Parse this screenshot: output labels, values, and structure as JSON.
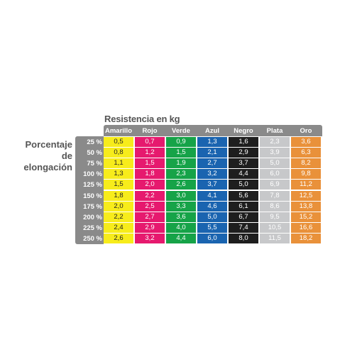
{
  "title": "Resistencia en kg",
  "row_label": "Porcentaje de elongación",
  "columns": [
    {
      "name": "Amarillo",
      "color": "#f7ec1b",
      "text": "#222"
    },
    {
      "name": "Rojo",
      "color": "#e6196e",
      "text": "#ffffff"
    },
    {
      "name": "Verde",
      "color": "#16a348",
      "text": "#ffffff"
    },
    {
      "name": "Azul",
      "color": "#1a64b0",
      "text": "#ffffff"
    },
    {
      "name": "Negro",
      "color": "#1e1e1e",
      "text": "#ffffff"
    },
    {
      "name": "Plata",
      "color": "#c7c8ca",
      "text": "#ffffff"
    },
    {
      "name": "Oro",
      "color": "#e9913a",
      "text": "#ffffff"
    }
  ],
  "rows": [
    {
      "pct": "25 %",
      "values": [
        "0,5",
        "0,7",
        "0,9",
        "1,3",
        "1,6",
        "2,3",
        "3,6"
      ]
    },
    {
      "pct": "50 %",
      "values": [
        "0,8",
        "1,2",
        "1,5",
        "2,1",
        "2,9",
        "3,9",
        "6,3"
      ]
    },
    {
      "pct": "75 %",
      "values": [
        "1,1",
        "1,5",
        "1,9",
        "2,7",
        "3,7",
        "5,0",
        "8,2"
      ]
    },
    {
      "pct": "100 %",
      "values": [
        "1,3",
        "1,8",
        "2,3",
        "3,2",
        "4,4",
        "6,0",
        "9,8"
      ]
    },
    {
      "pct": "125 %",
      "values": [
        "1,5",
        "2,0",
        "2,6",
        "3,7",
        "5,0",
        "6,9",
        "11,2"
      ]
    },
    {
      "pct": "150 %",
      "values": [
        "1,8",
        "2,2",
        "3,0",
        "4,1",
        "5,6",
        "7,8",
        "12,5"
      ]
    },
    {
      "pct": "175 %",
      "values": [
        "2,0",
        "2,5",
        "3,3",
        "4,6",
        "6,1",
        "8,6",
        "13,8"
      ]
    },
    {
      "pct": "200 %",
      "values": [
        "2,2",
        "2,7",
        "3,6",
        "5,0",
        "6,7",
        "9,5",
        "15,2"
      ]
    },
    {
      "pct": "225 %",
      "values": [
        "2,4",
        "2,9",
        "4,0",
        "5,5",
        "7,4",
        "10,5",
        "16,6"
      ]
    },
    {
      "pct": "250 %",
      "values": [
        "2,6",
        "3,2",
        "4,4",
        "6,0",
        "8,0",
        "11,5",
        "18,2"
      ]
    }
  ]
}
